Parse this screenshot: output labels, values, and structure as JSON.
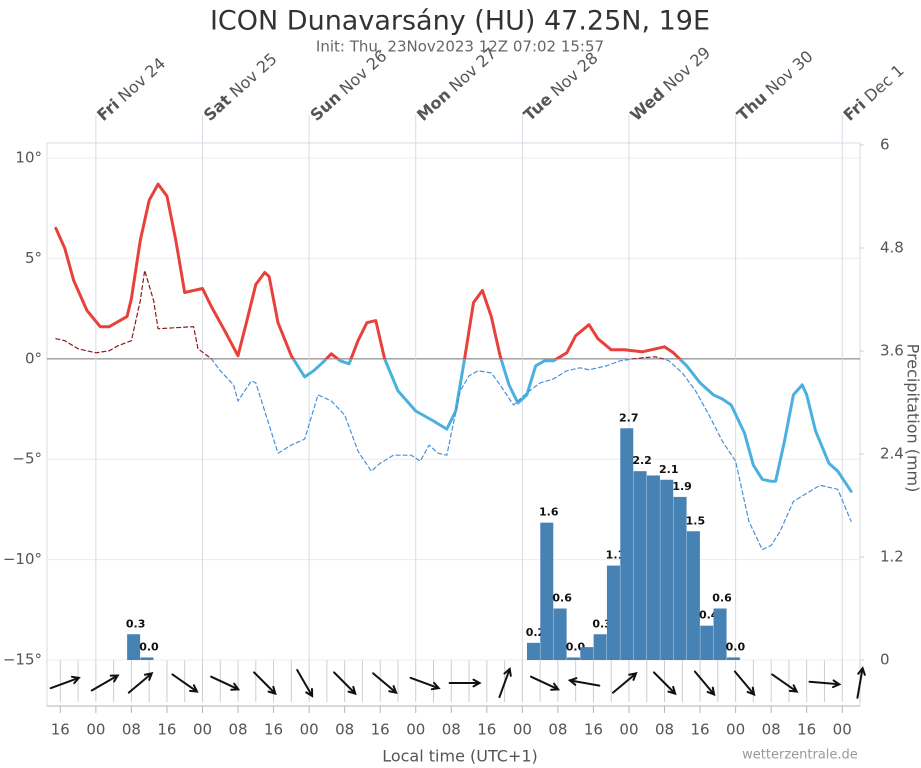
{
  "chart_data": {
    "type": "line",
    "title": "ICON Dunavarsány (HU) 47.25N, 19E",
    "subtitle": "Init: Thu, 23Nov2023 12Z 07:02 15:57",
    "x_label": "Local time (UTC+1)",
    "y2_label": "Precipitation (mm)",
    "credit": "wetterzentrale.de",
    "xlim": [
      13,
      196
    ],
    "xticks": [
      {
        "value": 16,
        "label": "16"
      },
      {
        "value": 24,
        "label": "00"
      },
      {
        "value": 32,
        "label": "08"
      },
      {
        "value": 40,
        "label": "16"
      },
      {
        "value": 48,
        "label": "00"
      },
      {
        "value": 56,
        "label": "08"
      },
      {
        "value": 64,
        "label": "16"
      },
      {
        "value": 72,
        "label": "00"
      },
      {
        "value": 80,
        "label": "08"
      },
      {
        "value": 88,
        "label": "16"
      },
      {
        "value": 96,
        "label": "00"
      },
      {
        "value": 104,
        "label": "08"
      },
      {
        "value": 112,
        "label": "16"
      },
      {
        "value": 120,
        "label": "00"
      },
      {
        "value": 128,
        "label": "08"
      },
      {
        "value": 136,
        "label": "16"
      },
      {
        "value": 144,
        "label": "00"
      },
      {
        "value": 152,
        "label": "08"
      },
      {
        "value": 160,
        "label": "16"
      },
      {
        "value": 168,
        "label": "00"
      },
      {
        "value": 176,
        "label": "08"
      },
      {
        "value": 184,
        "label": "16"
      },
      {
        "value": 192,
        "label": "00"
      }
    ],
    "x2ticks": [
      {
        "value": 24,
        "label": "Fri Nov 24"
      },
      {
        "value": 48,
        "label": "Sat Nov 25"
      },
      {
        "value": 72,
        "label": "Sun Nov 26"
      },
      {
        "value": 96,
        "label": "Mon Nov 27"
      },
      {
        "value": 120,
        "label": "Tue Nov 28"
      },
      {
        "value": 144,
        "label": "Wed Nov 29"
      },
      {
        "value": 168,
        "label": "Thu Nov 30"
      },
      {
        "value": 192,
        "label": "Fri Dec 1"
      }
    ],
    "ylim": [
      -15,
      10
    ],
    "yticks": [
      {
        "value": -15,
        "label": "−15°"
      },
      {
        "value": -10,
        "label": "−10°"
      },
      {
        "value": -5,
        "label": "−5°"
      },
      {
        "value": 0,
        "label": "0°"
      },
      {
        "value": 5,
        "label": "5°"
      },
      {
        "value": 10,
        "label": "10°"
      }
    ],
    "y2lim": [
      0,
      6
    ],
    "y2ticks": [
      0,
      1.2,
      2.4,
      3.6,
      4.8,
      6
    ],
    "grid": true,
    "series": [
      {
        "type": "line",
        "color_above": "#e8413c",
        "color_below": "#4ab0e0",
        "dashed": false,
        "x": [
          15,
          17,
          19,
          22,
          25,
          27,
          31,
          32,
          34,
          36,
          38,
          40,
          42,
          44,
          46,
          48,
          50,
          53,
          56,
          58,
          60,
          62,
          63,
          65,
          68,
          71,
          73,
          75,
          77,
          79,
          81,
          83,
          85,
          87,
          89,
          92,
          96,
          100,
          103,
          105,
          107,
          109,
          111,
          113,
          115,
          117,
          119,
          121,
          123,
          125,
          127,
          130,
          132,
          135,
          137,
          140,
          143,
          147,
          150,
          152,
          154,
          157,
          160,
          163,
          165,
          167,
          170,
          172,
          174,
          176,
          177,
          179,
          181,
          183,
          184,
          186,
          189,
          191,
          194
        ],
        "values": [
          6.5,
          5.5,
          3.9,
          2.4,
          1.6,
          1.6,
          2.1,
          3.0,
          5.9,
          7.9,
          8.7,
          8.1,
          5.9,
          3.3,
          3.4,
          3.5,
          2.6,
          1.4,
          0.15,
          1.9,
          3.7,
          4.3,
          4.1,
          1.8,
          0.15,
          -0.9,
          -0.6,
          -0.2,
          0.25,
          -0.1,
          -0.25,
          0.9,
          1.8,
          1.9,
          0,
          -1.6,
          -2.6,
          -3.1,
          -3.5,
          -2.6,
          0,
          2.8,
          3.4,
          2.1,
          0.15,
          -1.3,
          -2.2,
          -1.8,
          -0.35,
          -0.1,
          -0.1,
          0.3,
          1.15,
          1.7,
          1.0,
          0.45,
          0.45,
          0.35,
          0.5,
          0.6,
          0.3,
          -0.35,
          -1.2,
          -1.8,
          -2.0,
          -2.3,
          -3.7,
          -5.3,
          -6.0,
          -6.1,
          -6.1,
          -4.1,
          -1.8,
          -1.3,
          -1.8,
          -3.6,
          -5.2,
          -5.6,
          -6.6
        ]
      },
      {
        "type": "line",
        "color_above": "#8b1a1a",
        "color_below": "#4a90d9",
        "dashed": true,
        "x": [
          15,
          17,
          20,
          24,
          27,
          29,
          32,
          34,
          35,
          37,
          38,
          42,
          46,
          47,
          50,
          52,
          55,
          56,
          59,
          60,
          62,
          65,
          68,
          71,
          74,
          77,
          80,
          83,
          86,
          88,
          91,
          95,
          97,
          99,
          101,
          103,
          106,
          108,
          110,
          113,
          115,
          118,
          121,
          124,
          127,
          130,
          133,
          135,
          139,
          142,
          147,
          150,
          153,
          156,
          159,
          162,
          165,
          168,
          171,
          174,
          176,
          178,
          181,
          184,
          187,
          191,
          194
        ],
        "values": [
          1.0,
          0.9,
          0.5,
          0.3,
          0.4,
          0.65,
          0.9,
          2.9,
          4.4,
          2.9,
          1.5,
          1.55,
          1.6,
          0.5,
          0,
          -0.6,
          -1.3,
          -2.1,
          -1.1,
          -1.2,
          -2.6,
          -4.7,
          -4.3,
          -4.0,
          -1.8,
          -2.1,
          -2.8,
          -4.6,
          -5.6,
          -5.2,
          -4.8,
          -4.8,
          -5.1,
          -4.3,
          -4.7,
          -4.8,
          -1.6,
          -0.85,
          -0.6,
          -0.7,
          -1.3,
          -2.3,
          -1.7,
          -1.2,
          -1.0,
          -0.6,
          -0.45,
          -0.55,
          -0.35,
          -0.1,
          0.05,
          0.1,
          -0.1,
          -0.7,
          -1.6,
          -2.8,
          -4.1,
          -5.1,
          -8.1,
          -9.5,
          -9.3,
          -8.6,
          -7.1,
          -6.7,
          -6.3,
          -6.5,
          -8.1
        ]
      },
      {
        "type": "bar",
        "axis": "y2",
        "color": "#4682b4",
        "x": [
          32.5,
          35.5,
          122.5,
          125.5,
          128.5,
          131.5,
          134.5,
          137.5,
          140.5,
          143.5,
          146.5,
          149.5,
          152.5,
          155.5,
          158.5,
          161.5,
          164.5,
          167.5
        ],
        "values": [
          0.3,
          0.03,
          0.2,
          1.6,
          0.6,
          0.03,
          0.15,
          0.3,
          1.1,
          2.7,
          2.2,
          2.15,
          2.1,
          1.9,
          1.5,
          0.4,
          0.6,
          0.03
        ],
        "value_labels": [
          "0.3",
          "0.0",
          "0.2",
          "1.6",
          "0.6",
          "0.0",
          null,
          "0.3",
          "1.1",
          "2.7",
          "2.2",
          null,
          "2.1",
          "1.9",
          "1.5",
          "0.4",
          "0.6",
          "0.0"
        ]
      }
    ],
    "wind": {
      "color": "#111111",
      "x": [
        17,
        26,
        34,
        44,
        53,
        62,
        71,
        80,
        89,
        98,
        107,
        116,
        125,
        134,
        143,
        152,
        161,
        170,
        179,
        188,
        196
      ],
      "direction": [
        -20,
        -30,
        -40,
        35,
        25,
        45,
        60,
        45,
        40,
        20,
        0,
        -70,
        25,
        -170,
        -40,
        45,
        50,
        50,
        35,
        5,
        -80
      ]
    }
  }
}
